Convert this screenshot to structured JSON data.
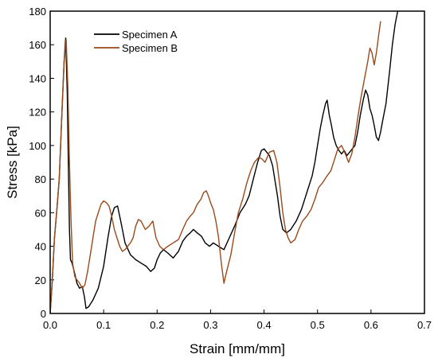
{
  "chart_data": {
    "type": "line",
    "xlabel": "Strain [mm/mm]",
    "ylabel": "Stress [kPa]",
    "xlim": [
      0,
      0.7
    ],
    "ylim": [
      0,
      180
    ],
    "x_ticks": [
      "0.0",
      "0.1",
      "0.2",
      "0.3",
      "0.4",
      "0.5",
      "0.6",
      "0.7"
    ],
    "y_ticks": [
      "0",
      "20",
      "40",
      "60",
      "80",
      "100",
      "120",
      "140",
      "160",
      "180"
    ],
    "grid": false,
    "legend_position": "top-left",
    "series": [
      {
        "name": "Specimen A",
        "color": "#000000",
        "points": [
          [
            0.0,
            0
          ],
          [
            0.004,
            20
          ],
          [
            0.008,
            45
          ],
          [
            0.012,
            60
          ],
          [
            0.017,
            80
          ],
          [
            0.022,
            120
          ],
          [
            0.026,
            150
          ],
          [
            0.029,
            164
          ],
          [
            0.032,
            130
          ],
          [
            0.034,
            90
          ],
          [
            0.036,
            50
          ],
          [
            0.038,
            32
          ],
          [
            0.041,
            30
          ],
          [
            0.045,
            25
          ],
          [
            0.05,
            18
          ],
          [
            0.055,
            15
          ],
          [
            0.06,
            16
          ],
          [
            0.064,
            10
          ],
          [
            0.067,
            3
          ],
          [
            0.072,
            4
          ],
          [
            0.08,
            8
          ],
          [
            0.09,
            15
          ],
          [
            0.1,
            28
          ],
          [
            0.108,
            45
          ],
          [
            0.115,
            58
          ],
          [
            0.12,
            63
          ],
          [
            0.126,
            64
          ],
          [
            0.132,
            55
          ],
          [
            0.14,
            42
          ],
          [
            0.15,
            35
          ],
          [
            0.16,
            32
          ],
          [
            0.17,
            30
          ],
          [
            0.18,
            28
          ],
          [
            0.188,
            25
          ],
          [
            0.195,
            27
          ],
          [
            0.2,
            32
          ],
          [
            0.206,
            36
          ],
          [
            0.212,
            38
          ],
          [
            0.22,
            36
          ],
          [
            0.23,
            33
          ],
          [
            0.24,
            37
          ],
          [
            0.248,
            43
          ],
          [
            0.255,
            46
          ],
          [
            0.262,
            48
          ],
          [
            0.268,
            50
          ],
          [
            0.275,
            48
          ],
          [
            0.283,
            46
          ],
          [
            0.29,
            42
          ],
          [
            0.298,
            40
          ],
          [
            0.305,
            42
          ],
          [
            0.315,
            40
          ],
          [
            0.325,
            38
          ],
          [
            0.335,
            45
          ],
          [
            0.345,
            52
          ],
          [
            0.355,
            60
          ],
          [
            0.365,
            65
          ],
          [
            0.372,
            70
          ],
          [
            0.38,
            80
          ],
          [
            0.388,
            90
          ],
          [
            0.395,
            97
          ],
          [
            0.4,
            98
          ],
          [
            0.405,
            96
          ],
          [
            0.41,
            94
          ],
          [
            0.416,
            88
          ],
          [
            0.42,
            80
          ],
          [
            0.425,
            70
          ],
          [
            0.43,
            58
          ],
          [
            0.435,
            50
          ],
          [
            0.442,
            48
          ],
          [
            0.45,
            50
          ],
          [
            0.46,
            55
          ],
          [
            0.47,
            62
          ],
          [
            0.48,
            72
          ],
          [
            0.49,
            82
          ],
          [
            0.495,
            90
          ],
          [
            0.5,
            100
          ],
          [
            0.505,
            110
          ],
          [
            0.51,
            118
          ],
          [
            0.515,
            125
          ],
          [
            0.518,
            127
          ],
          [
            0.522,
            118
          ],
          [
            0.526,
            112
          ],
          [
            0.53,
            105
          ],
          [
            0.535,
            100
          ],
          [
            0.54,
            97
          ],
          [
            0.545,
            95
          ],
          [
            0.55,
            97
          ],
          [
            0.555,
            94
          ],
          [
            0.56,
            96
          ],
          [
            0.565,
            98
          ],
          [
            0.57,
            100
          ],
          [
            0.575,
            108
          ],
          [
            0.58,
            118
          ],
          [
            0.586,
            128
          ],
          [
            0.59,
            133
          ],
          [
            0.594,
            130
          ],
          [
            0.598,
            122
          ],
          [
            0.602,
            118
          ],
          [
            0.606,
            112
          ],
          [
            0.61,
            105
          ],
          [
            0.614,
            103
          ],
          [
            0.618,
            108
          ],
          [
            0.622,
            115
          ],
          [
            0.628,
            125
          ],
          [
            0.635,
            145
          ],
          [
            0.64,
            160
          ],
          [
            0.645,
            172
          ],
          [
            0.65,
            180
          ]
        ]
      },
      {
        "name": "Specimen B",
        "color": "#9a4a1c",
        "points": [
          [
            0.0,
            0
          ],
          [
            0.004,
            20
          ],
          [
            0.008,
            45
          ],
          [
            0.012,
            60
          ],
          [
            0.017,
            80
          ],
          [
            0.022,
            120
          ],
          [
            0.026,
            150
          ],
          [
            0.03,
            163
          ],
          [
            0.033,
            135
          ],
          [
            0.036,
            90
          ],
          [
            0.039,
            55
          ],
          [
            0.042,
            30
          ],
          [
            0.046,
            22
          ],
          [
            0.05,
            20
          ],
          [
            0.055,
            18
          ],
          [
            0.06,
            15
          ],
          [
            0.065,
            17
          ],
          [
            0.07,
            25
          ],
          [
            0.075,
            35
          ],
          [
            0.08,
            45
          ],
          [
            0.085,
            55
          ],
          [
            0.09,
            60
          ],
          [
            0.095,
            65
          ],
          [
            0.1,
            67
          ],
          [
            0.105,
            66
          ],
          [
            0.11,
            64
          ],
          [
            0.115,
            58
          ],
          [
            0.12,
            50
          ],
          [
            0.125,
            45
          ],
          [
            0.13,
            40
          ],
          [
            0.135,
            37
          ],
          [
            0.14,
            38
          ],
          [
            0.145,
            40
          ],
          [
            0.15,
            42
          ],
          [
            0.155,
            45
          ],
          [
            0.16,
            52
          ],
          [
            0.165,
            56
          ],
          [
            0.17,
            55
          ],
          [
            0.178,
            50
          ],
          [
            0.185,
            52
          ],
          [
            0.192,
            55
          ],
          [
            0.198,
            45
          ],
          [
            0.205,
            40
          ],
          [
            0.212,
            38
          ],
          [
            0.22,
            40
          ],
          [
            0.23,
            42
          ],
          [
            0.24,
            44
          ],
          [
            0.248,
            50
          ],
          [
            0.255,
            55
          ],
          [
            0.262,
            58
          ],
          [
            0.268,
            60
          ],
          [
            0.275,
            65
          ],
          [
            0.282,
            68
          ],
          [
            0.287,
            72
          ],
          [
            0.292,
            73
          ],
          [
            0.296,
            70
          ],
          [
            0.3,
            66
          ],
          [
            0.305,
            62
          ],
          [
            0.31,
            55
          ],
          [
            0.315,
            45
          ],
          [
            0.32,
            30
          ],
          [
            0.325,
            18
          ],
          [
            0.33,
            25
          ],
          [
            0.338,
            35
          ],
          [
            0.345,
            48
          ],
          [
            0.352,
            60
          ],
          [
            0.36,
            68
          ],
          [
            0.368,
            78
          ],
          [
            0.375,
            85
          ],
          [
            0.382,
            90
          ],
          [
            0.39,
            93
          ],
          [
            0.396,
            92
          ],
          [
            0.402,
            90
          ],
          [
            0.41,
            96
          ],
          [
            0.418,
            97
          ],
          [
            0.424,
            90
          ],
          [
            0.43,
            75
          ],
          [
            0.435,
            60
          ],
          [
            0.44,
            50
          ],
          [
            0.445,
            45
          ],
          [
            0.45,
            42
          ],
          [
            0.458,
            44
          ],
          [
            0.465,
            50
          ],
          [
            0.472,
            55
          ],
          [
            0.48,
            58
          ],
          [
            0.488,
            62
          ],
          [
            0.495,
            68
          ],
          [
            0.502,
            75
          ],
          [
            0.51,
            78
          ],
          [
            0.518,
            82
          ],
          [
            0.525,
            85
          ],
          [
            0.532,
            92
          ],
          [
            0.538,
            98
          ],
          [
            0.545,
            100
          ],
          [
            0.552,
            95
          ],
          [
            0.558,
            90
          ],
          [
            0.564,
            95
          ],
          [
            0.57,
            105
          ],
          [
            0.576,
            118
          ],
          [
            0.582,
            130
          ],
          [
            0.588,
            140
          ],
          [
            0.594,
            150
          ],
          [
            0.598,
            158
          ],
          [
            0.602,
            155
          ],
          [
            0.606,
            148
          ],
          [
            0.61,
            155
          ],
          [
            0.614,
            165
          ],
          [
            0.618,
            174
          ]
        ]
      }
    ]
  }
}
